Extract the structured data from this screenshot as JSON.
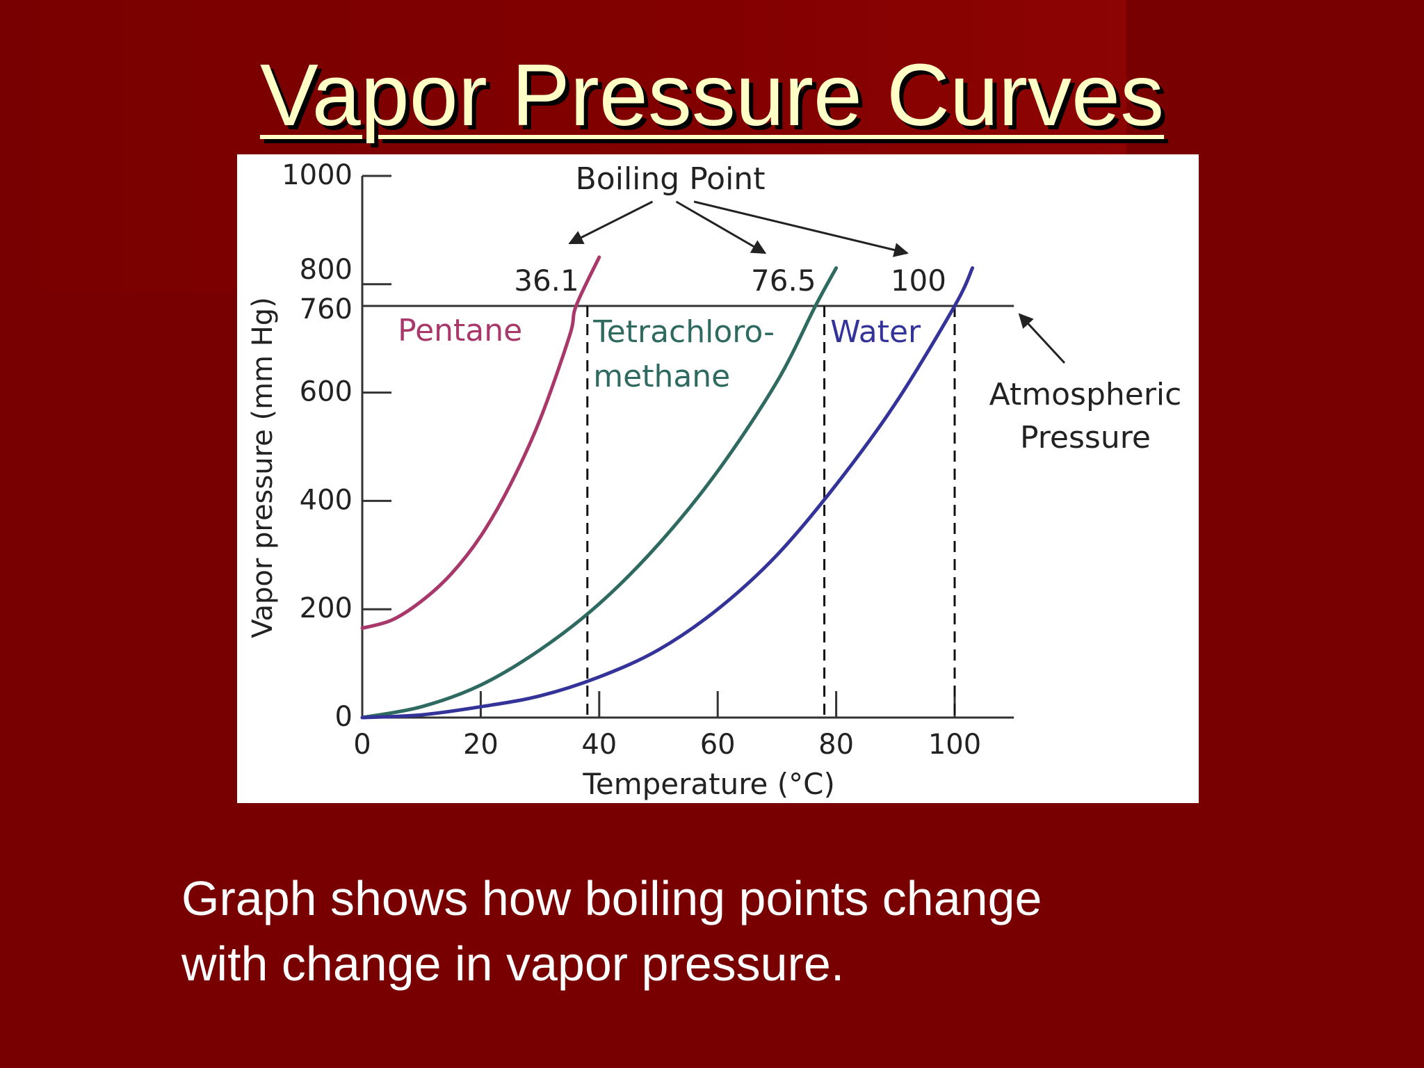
{
  "slide": {
    "title": "Vapor Pressure Curves",
    "caption_line1": "Graph shows how boiling points change",
    "caption_line2": "with change in vapor pressure."
  },
  "colors": {
    "background": "#790000",
    "title": "#ffffc6",
    "pentane": "#a8386a",
    "tetrachloromethane": "#2e6a60",
    "water": "#33339a",
    "axis": "#333333"
  },
  "chart_data": {
    "type": "line",
    "xlabel": "Temperature (°C)",
    "ylabel": "Vapor pressure (mm Hg)",
    "xlim": [
      0,
      110
    ],
    "ylim": [
      0,
      1000
    ],
    "x_ticks": [
      0,
      20,
      40,
      60,
      80,
      100
    ],
    "y_ticks": [
      0,
      200,
      400,
      600,
      760,
      800,
      1000
    ],
    "series": [
      {
        "name": "Pentane",
        "label_lines": [
          "Pentane"
        ],
        "points": [
          [
            0,
            165
          ],
          [
            5,
            180
          ],
          [
            10,
            215
          ],
          [
            15,
            265
          ],
          [
            20,
            335
          ],
          [
            25,
            430
          ],
          [
            30,
            550
          ],
          [
            35,
            705
          ],
          [
            36.1,
            760
          ],
          [
            40,
            850
          ]
        ]
      },
      {
        "name": "Tetrachloromethane",
        "label_lines": [
          "Tetrachloro-",
          "methane"
        ],
        "points": [
          [
            0,
            0
          ],
          [
            10,
            20
          ],
          [
            20,
            60
          ],
          [
            30,
            125
          ],
          [
            40,
            210
          ],
          [
            50,
            320
          ],
          [
            60,
            455
          ],
          [
            70,
            620
          ],
          [
            76.5,
            760
          ],
          [
            80,
            830
          ]
        ]
      },
      {
        "name": "Water",
        "label_lines": [
          "Water"
        ],
        "points": [
          [
            0,
            0
          ],
          [
            10,
            5
          ],
          [
            20,
            20
          ],
          [
            30,
            40
          ],
          [
            40,
            75
          ],
          [
            50,
            125
          ],
          [
            60,
            200
          ],
          [
            70,
            300
          ],
          [
            80,
            430
          ],
          [
            90,
            580
          ],
          [
            100,
            760
          ],
          [
            103,
            830
          ]
        ]
      }
    ],
    "reference_line": {
      "y": 760,
      "x_end": 110,
      "label_lines": [
        "Atmospheric",
        "Pressure"
      ]
    },
    "boiling_points": {
      "heading": "Boiling Point",
      "points": [
        {
          "label": "36.1",
          "x": 38
        },
        {
          "label": "76.5",
          "x": 78
        },
        {
          "label": "100",
          "x": 100
        }
      ]
    },
    "grid": false,
    "legend": "inline labels"
  }
}
